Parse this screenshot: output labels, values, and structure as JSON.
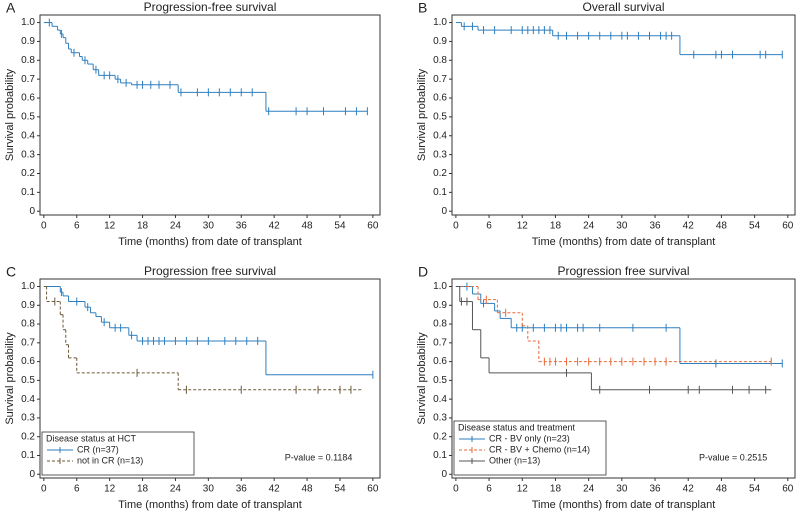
{
  "chart_data": [
    {
      "type": "step",
      "panel": "A",
      "title": "Progression-free survival",
      "xlabel": "Time (months) from date of transplant",
      "ylabel": "Survival probability",
      "xlim": [
        -0.7,
        61.3
      ],
      "ylim": [
        -0.02,
        1.04
      ],
      "xticks": [
        0,
        6,
        12,
        18,
        24,
        30,
        36,
        42,
        48,
        54,
        60
      ],
      "yticks": [
        0,
        0.1,
        0.2,
        0.3,
        0.4,
        0.5,
        0.6,
        0.7,
        0.8,
        0.9,
        {
          "value": 1,
          "label": "1.0"
        }
      ],
      "series": [
        {
          "color": "#2e7fbf",
          "dash": false,
          "x": [
            0,
            1.5,
            2.5,
            3,
            3.5,
            4,
            4.5,
            5,
            6.5,
            7,
            8,
            9,
            10,
            13,
            14,
            16,
            24.5,
            40.5,
            59
          ],
          "values": [
            1,
            0.98,
            0.96,
            0.94,
            0.92,
            0.89,
            0.86,
            0.84,
            0.82,
            0.8,
            0.78,
            0.75,
            0.72,
            0.7,
            0.68,
            0.67,
            0.63,
            0.53,
            0.53
          ],
          "censor_x": [
            1,
            3.2,
            5.5,
            7.5,
            9.5,
            11,
            12,
            13.5,
            15,
            17,
            18,
            19.5,
            21,
            23,
            25,
            28,
            30,
            32,
            34,
            36,
            38,
            41,
            46,
            48,
            51,
            55,
            57,
            59
          ],
          "censor_y": [
            1,
            0.94,
            0.84,
            0.8,
            0.75,
            0.72,
            0.72,
            0.7,
            0.68,
            0.67,
            0.67,
            0.67,
            0.67,
            0.67,
            0.63,
            0.63,
            0.63,
            0.63,
            0.63,
            0.63,
            0.63,
            0.53,
            0.53,
            0.53,
            0.53,
            0.53,
            0.53,
            0.53
          ]
        }
      ]
    },
    {
      "type": "step",
      "panel": "B",
      "title": "Overall survival",
      "xlabel": "Time (months) from date of transplant",
      "ylabel": "Survival probability",
      "xlim": [
        -0.7,
        61.3
      ],
      "ylim": [
        -0.02,
        1.04
      ],
      "xticks": [
        0,
        6,
        12,
        18,
        24,
        30,
        36,
        42,
        48,
        54,
        60
      ],
      "yticks": [
        0,
        0.1,
        0.2,
        0.3,
        0.4,
        0.5,
        0.6,
        0.7,
        0.8,
        0.9,
        {
          "value": 1,
          "label": "1.0"
        }
      ],
      "series": [
        {
          "color": "#2e7fbf",
          "dash": false,
          "x": [
            0,
            1,
            4,
            17.5,
            40.5,
            59
          ],
          "values": [
            1,
            0.98,
            0.96,
            0.93,
            0.83,
            0.83
          ],
          "censor_x": [
            1.5,
            3,
            5,
            7,
            10,
            12,
            13,
            14,
            15,
            16,
            17,
            18.5,
            20,
            22,
            24,
            26,
            28,
            30,
            31,
            33,
            35,
            37,
            38,
            39,
            43,
            47,
            48,
            50,
            55,
            56,
            59
          ],
          "censor_y": [
            0.98,
            0.98,
            0.96,
            0.96,
            0.96,
            0.96,
            0.96,
            0.96,
            0.96,
            0.96,
            0.96,
            0.93,
            0.93,
            0.93,
            0.93,
            0.93,
            0.93,
            0.93,
            0.93,
            0.93,
            0.93,
            0.93,
            0.93,
            0.93,
            0.83,
            0.83,
            0.83,
            0.83,
            0.83,
            0.83,
            0.83
          ]
        }
      ]
    },
    {
      "type": "step",
      "panel": "C",
      "title": "Progression free survival",
      "xlabel": "Time (months) from date of transplant",
      "ylabel": "Survival probability",
      "xlim": [
        -0.7,
        61.3
      ],
      "ylim": [
        -0.02,
        1.04
      ],
      "xticks": [
        0,
        6,
        12,
        18,
        24,
        30,
        36,
        42,
        48,
        54,
        60
      ],
      "yticks": [
        0,
        0.1,
        0.2,
        0.3,
        0.4,
        0.5,
        0.6,
        0.7,
        0.8,
        0.9,
        {
          "value": 1,
          "label": "1.0"
        }
      ],
      "legend_title": "Disease status at HCT",
      "annotation": "P-value = 0.1184",
      "series": [
        {
          "name": "CR (n=37)",
          "color": "#2e7fbf",
          "dash": false,
          "x": [
            0,
            3,
            3.5,
            4.5,
            7.5,
            8.5,
            9.5,
            10.5,
            12,
            15.5,
            17,
            40.5,
            60
          ],
          "values": [
            1,
            0.97,
            0.95,
            0.92,
            0.89,
            0.86,
            0.84,
            0.81,
            0.78,
            0.74,
            0.71,
            0.53,
            0.53
          ],
          "censor_x": [
            3.2,
            6,
            8,
            11,
            13,
            14,
            16,
            18,
            19,
            20,
            21,
            22,
            24,
            26,
            28,
            30,
            33,
            35,
            37,
            39,
            60
          ],
          "censor_y": [
            0.97,
            0.92,
            0.89,
            0.81,
            0.78,
            0.78,
            0.74,
            0.71,
            0.71,
            0.71,
            0.71,
            0.71,
            0.71,
            0.71,
            0.71,
            0.71,
            0.71,
            0.71,
            0.71,
            0.71,
            0.53
          ]
        },
        {
          "name": "not in CR (n=13)",
          "color": "#6b5a3a",
          "dash": true,
          "x": [
            0,
            0.5,
            3,
            3.5,
            4,
            4.5,
            6,
            24.5,
            58
          ],
          "values": [
            1,
            0.92,
            0.85,
            0.77,
            0.69,
            0.62,
            0.54,
            0.45,
            0.45
          ],
          "censor_x": [
            2,
            17,
            26,
            36,
            46,
            50,
            54,
            56
          ],
          "censor_y": [
            0.92,
            0.54,
            0.45,
            0.45,
            0.45,
            0.45,
            0.45,
            0.45
          ]
        }
      ]
    },
    {
      "type": "step",
      "panel": "D",
      "title": "Progression free survival",
      "xlabel": "Time (months) from date of transplant",
      "ylabel": "Survival probability",
      "xlim": [
        -0.7,
        61.3
      ],
      "ylim": [
        -0.02,
        1.04
      ],
      "xticks": [
        0,
        6,
        12,
        18,
        24,
        30,
        36,
        42,
        48,
        54,
        60
      ],
      "yticks": [
        0,
        0.1,
        0.2,
        0.3,
        0.4,
        0.5,
        0.6,
        0.7,
        0.8,
        0.9,
        {
          "value": 1,
          "label": "1.0"
        }
      ],
      "legend_title": "Disease status and treatment",
      "annotation": "P-value = 0.2515",
      "series": [
        {
          "name": "CR - BV only (n=23)",
          "color": "#2e7fbf",
          "dash": false,
          "x": [
            0,
            3,
            4.5,
            7,
            8,
            10,
            40.5,
            59
          ],
          "values": [
            1,
            0.96,
            0.91,
            0.87,
            0.83,
            0.78,
            0.59,
            0.59
          ],
          "censor_x": [
            2,
            5,
            11,
            12,
            14,
            16,
            18,
            19,
            20,
            22,
            23,
            26,
            32,
            38,
            47,
            59
          ],
          "censor_y": [
            1,
            0.91,
            0.78,
            0.78,
            0.78,
            0.78,
            0.78,
            0.78,
            0.78,
            0.78,
            0.78,
            0.78,
            0.78,
            0.78,
            0.59,
            0.59
          ]
        },
        {
          "name": "CR - BV + Chemo (n=14)",
          "color": "#e8693a",
          "dash": true,
          "x": [
            0,
            4,
            7.5,
            12,
            13,
            15,
            57
          ],
          "values": [
            1,
            0.93,
            0.86,
            0.79,
            0.71,
            0.6,
            0.6
          ],
          "censor_x": [
            5.5,
            9,
            16,
            17,
            18,
            20,
            22,
            24,
            26,
            28,
            30,
            32,
            34,
            36,
            38,
            57
          ],
          "censor_y": [
            0.93,
            0.86,
            0.6,
            0.6,
            0.6,
            0.6,
            0.6,
            0.6,
            0.6,
            0.6,
            0.6,
            0.6,
            0.6,
            0.6,
            0.6,
            0.6
          ]
        },
        {
          "name": "Other (n=13)",
          "color": "#555555",
          "dash": false,
          "x": [
            0,
            0.7,
            3,
            4.5,
            6,
            24.5,
            57
          ],
          "values": [
            1,
            0.92,
            0.77,
            0.62,
            0.54,
            0.45,
            0.45
          ],
          "censor_x": [
            1,
            2,
            20,
            26,
            35,
            42,
            44,
            50,
            53,
            56
          ],
          "censor_y": [
            0.92,
            0.92,
            0.54,
            0.45,
            0.45,
            0.45,
            0.45,
            0.45,
            0.45,
            0.45
          ]
        }
      ]
    }
  ]
}
